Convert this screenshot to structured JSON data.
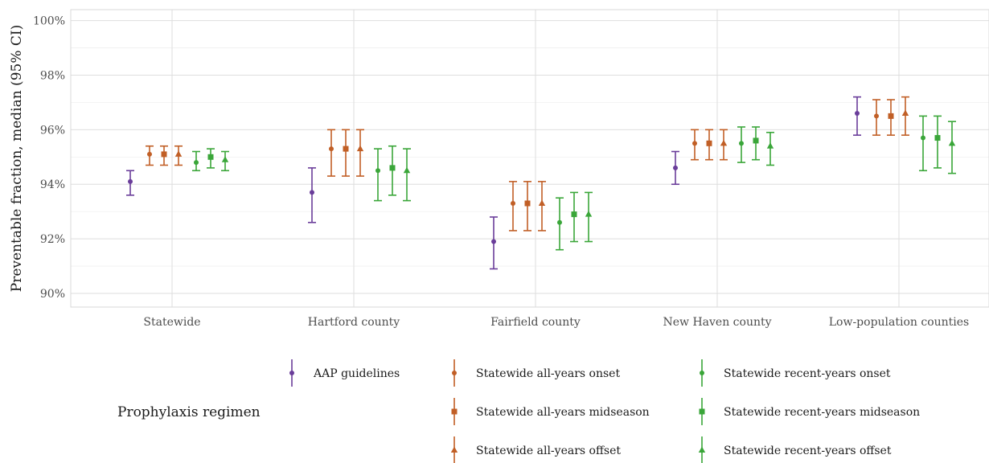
{
  "chart_data": {
    "type": "scatter",
    "subtype": "point-range with error bars",
    "ylabel": "Preventable fraction, median (95% CI)",
    "xlabel": "",
    "ylim": [
      89.5,
      100.4
    ],
    "y_ticks": [
      90,
      92,
      94,
      96,
      98,
      100
    ],
    "y_tick_labels": [
      "90%",
      "92%",
      "94%",
      "96%",
      "98%",
      "100%"
    ],
    "y_unit": "%",
    "grid": true,
    "legend_position": "bottom",
    "legend_title": "Prophylaxis regimen",
    "categories": [
      "Statewide",
      "Hartford county",
      "Fairfield county",
      "New Haven county",
      "Low-population counties"
    ],
    "series": [
      {
        "name": "AAP guidelines",
        "color": "#6a3d9a",
        "marker": "circle",
        "median": [
          94.1,
          93.7,
          91.9,
          94.6,
          96.6
        ],
        "lower": [
          93.6,
          92.6,
          90.9,
          94.0,
          95.8
        ],
        "upper": [
          94.5,
          94.6,
          92.8,
          95.2,
          97.2
        ]
      },
      {
        "name": "Statewide all-years onset",
        "color": "#c15f26",
        "marker": "circle",
        "median": [
          95.1,
          95.3,
          93.3,
          95.5,
          96.5
        ],
        "lower": [
          94.7,
          94.3,
          92.3,
          94.9,
          95.8
        ],
        "upper": [
          95.4,
          96.0,
          94.1,
          96.0,
          97.1
        ]
      },
      {
        "name": "Statewide all-years midseason",
        "color": "#c15f26",
        "marker": "square",
        "median": [
          95.1,
          95.3,
          93.3,
          95.5,
          96.5
        ],
        "lower": [
          94.7,
          94.3,
          92.3,
          94.9,
          95.8
        ],
        "upper": [
          95.4,
          96.0,
          94.1,
          96.0,
          97.1
        ]
      },
      {
        "name": "Statewide all-years offset",
        "color": "#c15f26",
        "marker": "triangle",
        "median": [
          95.1,
          95.3,
          93.3,
          95.5,
          96.6
        ],
        "lower": [
          94.7,
          94.3,
          92.3,
          94.9,
          95.8
        ],
        "upper": [
          95.4,
          96.0,
          94.1,
          96.0,
          97.2
        ]
      },
      {
        "name": "Statewide recent-years onset",
        "color": "#3aa639",
        "marker": "circle",
        "median": [
          94.8,
          94.5,
          92.6,
          95.5,
          95.7
        ],
        "lower": [
          94.5,
          93.4,
          91.6,
          94.8,
          94.5
        ],
        "upper": [
          95.2,
          95.3,
          93.5,
          96.1,
          96.5
        ]
      },
      {
        "name": "Statewide recent-years midseason",
        "color": "#3aa639",
        "marker": "square",
        "median": [
          95.0,
          94.6,
          92.9,
          95.6,
          95.7
        ],
        "lower": [
          94.6,
          93.6,
          91.9,
          94.9,
          94.6
        ],
        "upper": [
          95.3,
          95.4,
          93.7,
          96.1,
          96.5
        ]
      },
      {
        "name": "Statewide recent-years offset",
        "color": "#3aa639",
        "marker": "triangle",
        "median": [
          94.9,
          94.5,
          92.9,
          95.4,
          95.5
        ],
        "lower": [
          94.5,
          93.4,
          91.9,
          94.7,
          94.4
        ],
        "upper": [
          95.2,
          95.3,
          93.7,
          95.9,
          96.3
        ]
      }
    ]
  }
}
